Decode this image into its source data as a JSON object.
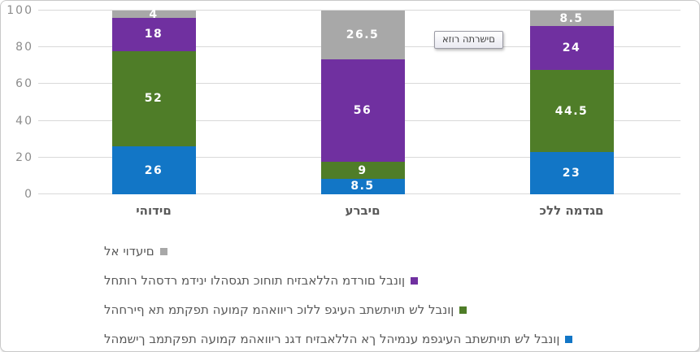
{
  "tooltip": {
    "label": "אזור התרשים"
  },
  "chart_data": {
    "type": "bar",
    "subtype": "stacked-100",
    "title": "",
    "xlabel": "",
    "ylabel": "",
    "ylim": [
      0,
      100
    ],
    "yticks": [
      0,
      20,
      40,
      60,
      80,
      100
    ],
    "grid": "horizontal",
    "legend_position": "bottom-left",
    "legend_order": [
      3,
      2,
      1,
      0
    ],
    "categories": [
      "יהודים",
      "ערבים",
      "כלל המדגם"
    ],
    "series": [
      {
        "name": "להמשיך במתקפת העומק מהאוויר נגד חיזבאללה אך להימנע מפגיעה בתשתיות של לבנון",
        "color": "#1276c6",
        "values": [
          26,
          8.5,
          23
        ]
      },
      {
        "name": "להחריף את מתקפת העומק מהאוויר כולל פגיעה בתשתיות של לבנון",
        "color": "#4f7d28",
        "values": [
          52,
          9,
          44.5
        ]
      },
      {
        "name": "לחתור להסדר מדיני ולהסגת כוחות חיזבאללה מדרום לבנון",
        "color": "#7030a0",
        "values": [
          18,
          56,
          24
        ]
      },
      {
        "name": "לא יודעים",
        "color": "#a8a8a8",
        "values": [
          4,
          26.5,
          8.5
        ]
      }
    ]
  }
}
